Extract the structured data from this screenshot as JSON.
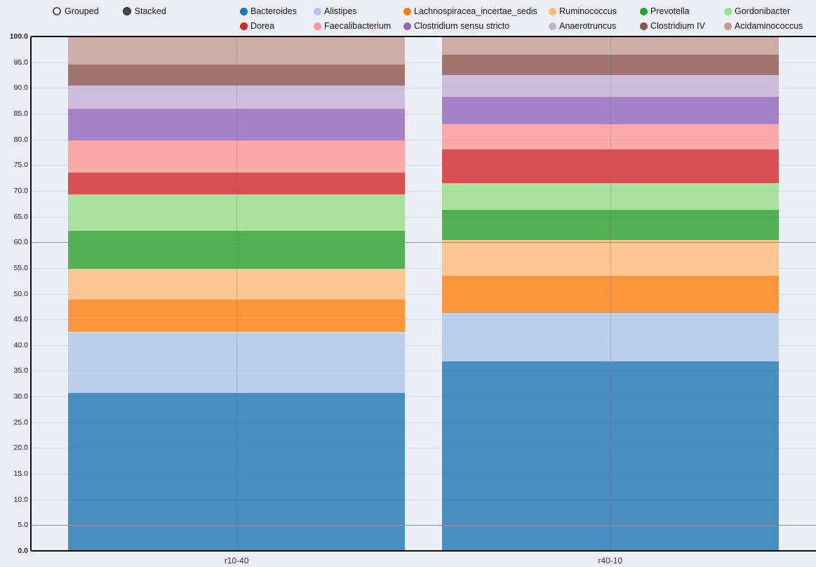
{
  "controls": {
    "grouped_label": "Grouped",
    "stacked_label": "Stacked",
    "selected": "Stacked"
  },
  "chart_data": {
    "type": "bar",
    "stacked": true,
    "normalized_percent": true,
    "title": "",
    "xlabel": "",
    "ylabel": "",
    "categories": [
      "r10-40",
      "r40-10"
    ],
    "series": [
      {
        "name": "Bacteroides",
        "color": "#1f77b4",
        "values": [
          30.7,
          36.8
        ]
      },
      {
        "name": "Alistipes",
        "color": "#aec7e8",
        "values": [
          11.8,
          9.4
        ]
      },
      {
        "name": "Lachnospiracea_incertae_sedis",
        "color": "#ff7f0e",
        "values": [
          6.3,
          7.3
        ]
      },
      {
        "name": "Ruminococcus",
        "color": "#ffbb78",
        "values": [
          6.0,
          6.9
        ]
      },
      {
        "name": "Prevotella",
        "color": "#2ca02c",
        "values": [
          7.4,
          5.9
        ]
      },
      {
        "name": "Gordonibacter",
        "color": "#98df8a",
        "values": [
          7.1,
          5.2
        ]
      },
      {
        "name": "Dorea",
        "color": "#d62728",
        "values": [
          4.2,
          6.5
        ]
      },
      {
        "name": "Faecalibacterium",
        "color": "#ff9896",
        "values": [
          6.3,
          5.0
        ]
      },
      {
        "name": "Clostridium sensu stricto",
        "color": "#9467bd",
        "values": [
          6.2,
          5.3
        ]
      },
      {
        "name": "Anaerotruncus",
        "color": "#c5b0d5",
        "values": [
          4.5,
          4.2
        ]
      },
      {
        "name": "Clostridium IV",
        "color": "#8c564b",
        "values": [
          4.0,
          4.0
        ]
      },
      {
        "name": "Acidaminococcus",
        "color": "#c49c94",
        "values": [
          5.5,
          3.5
        ]
      }
    ],
    "ylim": [
      0,
      100
    ],
    "ytick_step": 5,
    "yticks": [
      "0.0",
      "5.0",
      "10.0",
      "15.0",
      "20.0",
      "25.0",
      "30.0",
      "35.0",
      "40.0",
      "45.0",
      "50.0",
      "55.0",
      "60.0",
      "65.0",
      "70.0",
      "75.0",
      "80.0",
      "85.0",
      "90.0",
      "95.0",
      "100.0"
    ],
    "reference_lines": [
      5,
      60
    ],
    "legend_position": "top",
    "grid": true,
    "background_color": "#ebeef4"
  }
}
